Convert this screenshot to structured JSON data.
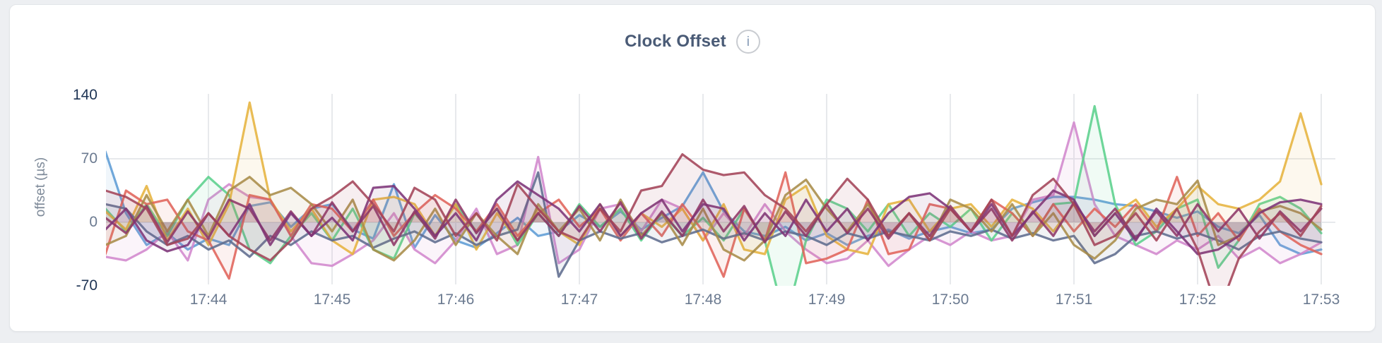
{
  "header": {
    "title": "Clock Offset",
    "info_glyph": "i"
  },
  "y_axis": {
    "title": "offset (µs)",
    "ticks": [
      {
        "label": "140",
        "value": 140,
        "strong": true
      },
      {
        "label": "70",
        "value": 70,
        "strong": false
      },
      {
        "label": "0",
        "value": 0,
        "strong": false
      },
      {
        "label": "-70",
        "value": -70,
        "strong": true
      }
    ]
  },
  "x_axis": {
    "ticks": [
      "17:44",
      "17:45",
      "17:46",
      "17:47",
      "17:48",
      "17:49",
      "17:50",
      "17:51",
      "17:52",
      "17:53"
    ]
  },
  "chart_data": {
    "type": "line",
    "title": "Clock Offset",
    "ylabel": "offset (µs)",
    "ylim": [
      -70,
      140
    ],
    "y_gridlines": [
      70,
      0
    ],
    "x_start": "17:43:10",
    "x_end": "17:53:00",
    "interval_seconds": 10,
    "x_tick_labels": [
      "17:44",
      "17:45",
      "17:46",
      "17:47",
      "17:48",
      "17:49",
      "17:50",
      "17:51",
      "17:52",
      "17:53"
    ],
    "grid": true,
    "legend": "none",
    "series": [
      {
        "name": "blue",
        "color": "#5d9cd5",
        "values": [
          78,
          10,
          -25,
          -12,
          -30,
          -18,
          -25,
          18,
          22,
          -5,
          15,
          20,
          -8,
          -18,
          42,
          -28,
          8,
          -20,
          -28,
          -12,
          5,
          -15,
          -10,
          8,
          -5,
          12,
          -8,
          5,
          18,
          55,
          12,
          -10,
          -15,
          -5,
          -20,
          -12,
          -25,
          -15,
          -8,
          -18,
          -10,
          -5,
          -12,
          -8,
          15,
          22,
          28,
          28,
          25,
          20,
          18,
          12,
          5,
          12,
          -5,
          -12,
          8,
          -25,
          -35,
          -30
        ]
      },
      {
        "name": "orchid",
        "color": "#d287cd",
        "values": [
          -38,
          -42,
          -30,
          -10,
          -42,
          25,
          42,
          28,
          25,
          -15,
          -45,
          -48,
          -35,
          -20,
          10,
          -30,
          -45,
          -20,
          15,
          -35,
          -25,
          72,
          -45,
          -30,
          15,
          20,
          -10,
          25,
          15,
          -20,
          10,
          -15,
          20,
          -10,
          -30,
          -45,
          -40,
          -20,
          -48,
          -30,
          -15,
          -25,
          -10,
          -20,
          -15,
          25,
          30,
          110,
          20,
          -15,
          -25,
          -35,
          -20,
          -30,
          -15,
          -40,
          -28,
          -45,
          -35,
          -22
        ]
      },
      {
        "name": "green",
        "color": "#5bd08c",
        "values": [
          15,
          -10,
          20,
          -15,
          25,
          50,
          30,
          -30,
          -45,
          -15,
          10,
          -20,
          15,
          -30,
          -40,
          10,
          -15,
          20,
          -10,
          15,
          -25,
          10,
          -15,
          20,
          -5,
          15,
          -20,
          10,
          -15,
          5,
          -20,
          15,
          -20,
          -110,
          -20,
          25,
          15,
          -10,
          20,
          -15,
          10,
          -5,
          15,
          -20,
          10,
          -15,
          20,
          22,
          128,
          20,
          -25,
          -10,
          15,
          25,
          -50,
          -20,
          20,
          28,
          15,
          -12
        ]
      },
      {
        "name": "gold",
        "color": "#e6b33d",
        "values": [
          12,
          -8,
          40,
          -20,
          15,
          -25,
          20,
          132,
          25,
          -10,
          15,
          -20,
          -35,
          25,
          28,
          20,
          -15,
          20,
          -30,
          10,
          -20,
          15,
          -10,
          -25,
          20,
          -15,
          10,
          -5,
          15,
          -20,
          20,
          -30,
          -35,
          25,
          40,
          -15,
          -30,
          -35,
          20,
          25,
          -10,
          15,
          20,
          -5,
          25,
          15,
          -10,
          20,
          -15,
          10,
          25,
          -5,
          15,
          40,
          20,
          15,
          25,
          45,
          120,
          42
        ]
      },
      {
        "name": "red",
        "color": "#e0635a",
        "values": [
          -35,
          35,
          20,
          25,
          -10,
          -20,
          -62,
          30,
          25,
          -15,
          20,
          15,
          -10,
          25,
          -15,
          10,
          30,
          15,
          -10,
          20,
          -15,
          10,
          25,
          -5,
          15,
          -20,
          10,
          -15,
          20,
          -10,
          -60,
          15,
          -20,
          55,
          -45,
          -40,
          -30,
          25,
          -35,
          -30,
          20,
          15,
          -10,
          25,
          10,
          -15,
          20,
          -10,
          15,
          -5,
          20,
          -10,
          50,
          -15,
          10,
          -20,
          15,
          -10,
          -25,
          -35
        ]
      },
      {
        "name": "slate",
        "color": "#5e6c8e",
        "values": [
          20,
          15,
          -10,
          -25,
          -15,
          -30,
          -20,
          -38,
          -15,
          -25,
          -10,
          -20,
          -15,
          -28,
          -18,
          -10,
          -22,
          -12,
          -25,
          -15,
          -8,
          55,
          -60,
          -20,
          -10,
          -18,
          -12,
          -22,
          -15,
          -8,
          -18,
          -12,
          -20,
          -10,
          -15,
          -25,
          -12,
          -18,
          -10,
          -15,
          -20,
          -10,
          -15,
          -8,
          -18,
          -12,
          -20,
          -15,
          -45,
          -35,
          -15,
          -10,
          -18,
          -12,
          -20,
          -30,
          -15,
          -10,
          -18,
          -22
        ]
      },
      {
        "name": "olive",
        "color": "#a98c49",
        "values": [
          -25,
          -15,
          30,
          -10,
          25,
          -15,
          35,
          50,
          30,
          38,
          20,
          -10,
          25,
          -30,
          -42,
          -20,
          15,
          -25,
          10,
          -15,
          -35,
          20,
          -10,
          15,
          -20,
          25,
          -15,
          10,
          -25,
          15,
          -30,
          -42,
          -20,
          30,
          47,
          15,
          -10,
          20,
          -15,
          10,
          -20,
          25,
          15,
          -10,
          20,
          -15,
          10,
          -25,
          -40,
          -20,
          15,
          25,
          20,
          46,
          -25,
          -15,
          12,
          18,
          10,
          -8
        ]
      },
      {
        "name": "wine",
        "color": "#8e3766",
        "values": [
          5,
          -12,
          18,
          -22,
          12,
          -18,
          25,
          15,
          -20,
          12,
          -15,
          22,
          -10,
          18,
          -25,
          12,
          -18,
          25,
          -12,
          15,
          -20,
          10,
          -15,
          18,
          -10,
          22,
          -18,
          12,
          -15,
          25,
          -10,
          18,
          -22,
          12,
          -15,
          20,
          -12,
          15,
          -18,
          10,
          -15,
          18,
          -10,
          15,
          -20,
          12,
          -15,
          22,
          -10,
          15,
          -18,
          12,
          -15,
          20,
          -10,
          15,
          -18,
          12,
          -10,
          15
        ]
      },
      {
        "name": "purple",
        "color": "#7c3377",
        "values": [
          -8,
          15,
          -20,
          -32,
          -25,
          10,
          -15,
          20,
          -25,
          10,
          -15,
          5,
          -20,
          38,
          40,
          15,
          -15,
          10,
          -20,
          25,
          45,
          30,
          15,
          -10,
          20,
          -15,
          10,
          25,
          -10,
          20,
          15,
          -20,
          10,
          -15,
          25,
          -10,
          15,
          -20,
          10,
          28,
          32,
          15,
          -10,
          20,
          -15,
          10,
          35,
          25,
          -15,
          10,
          -20,
          15,
          -10,
          -35,
          -30,
          -15,
          10,
          22,
          25,
          20
        ]
      },
      {
        "name": "maroon",
        "color": "#a34358",
        "values": [
          35,
          28,
          15,
          -25,
          -18,
          10,
          -15,
          -30,
          -42,
          -20,
          15,
          28,
          45,
          20,
          -10,
          38,
          25,
          -15,
          10,
          -20,
          42,
          15,
          -10,
          -20,
          15,
          -10,
          35,
          40,
          75,
          58,
          52,
          55,
          30,
          15,
          -10,
          20,
          48,
          25,
          -15,
          10,
          -20,
          15,
          -10,
          25,
          -15,
          30,
          48,
          20,
          -25,
          -15,
          10,
          -20,
          15,
          -30,
          -100,
          -40,
          -10,
          10,
          -15,
          18
        ]
      }
    ]
  }
}
